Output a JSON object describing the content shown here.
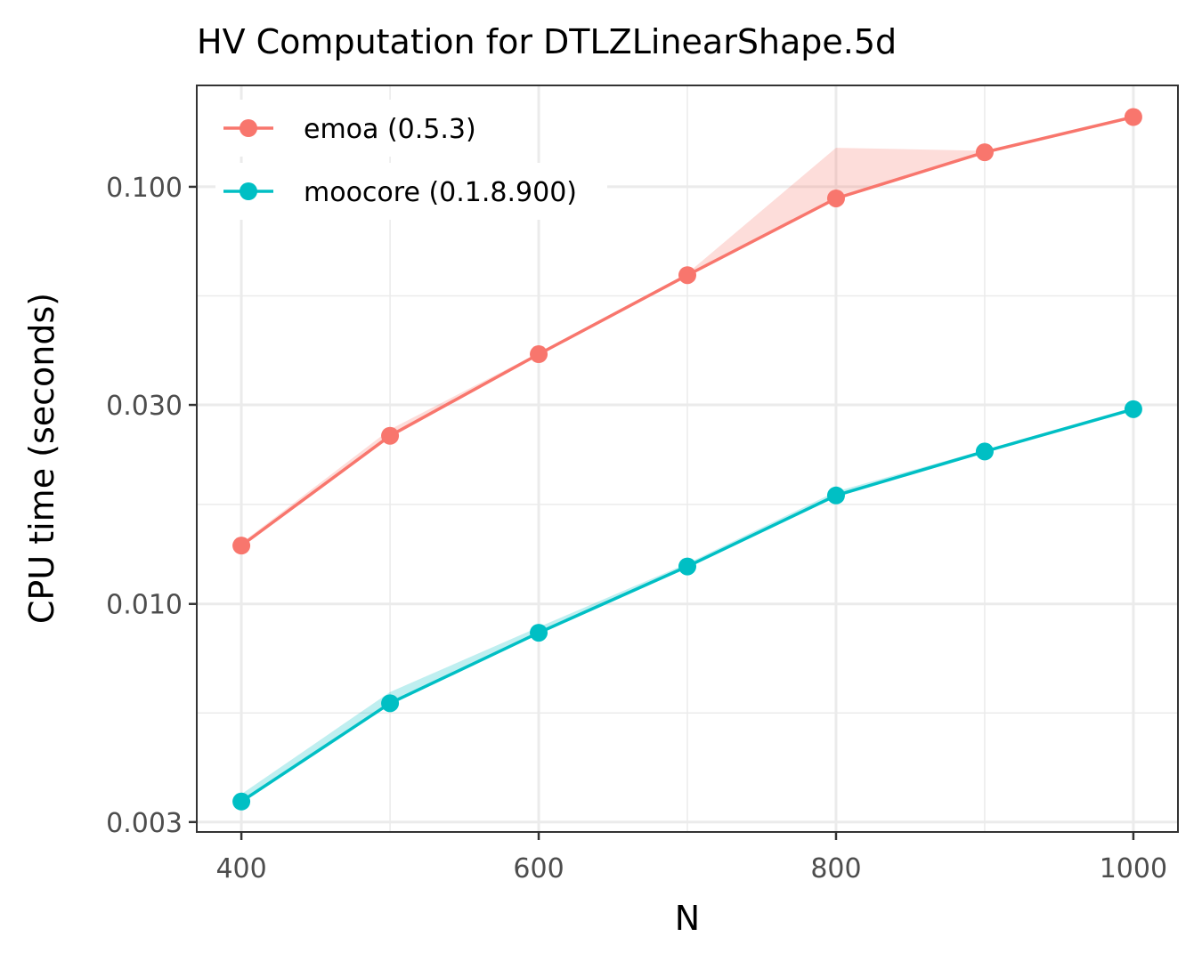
{
  "chart_data": {
    "type": "line",
    "title": "HV Computation for DTLZLinearShape.5d",
    "xlabel": "N",
    "ylabel": "CPU time (seconds)",
    "x": [
      400,
      500,
      600,
      700,
      800,
      900,
      1000
    ],
    "xlim": [
      370,
      1030
    ],
    "ylim": [
      0.00284,
      0.175
    ],
    "yscale": "log10",
    "x_ticks": [
      400,
      600,
      800,
      1000
    ],
    "x_tick_labels": [
      "400",
      "600",
      "800",
      "1000"
    ],
    "y_ticks": [
      0.003,
      0.01,
      0.03,
      0.1
    ],
    "y_tick_labels": [
      "0.003",
      "0.010",
      "0.030",
      "0.100"
    ],
    "grid": true,
    "legend_position": "top-left",
    "series": [
      {
        "name": "emoa (0.5.3)",
        "color": "#F8766D",
        "values": [
          0.0138,
          0.0253,
          0.0397,
          0.0614,
          0.0938,
          0.121,
          0.147
        ],
        "ribbon_lower": [
          0.0138,
          0.025,
          0.0395,
          0.0612,
          0.0935,
          0.12,
          0.146
        ],
        "ribbon_upper": [
          0.014,
          0.0262,
          0.04,
          0.062,
          0.124,
          0.122,
          0.148
        ]
      },
      {
        "name": "moocore (0.1.8.900)",
        "color": "#00BFC4",
        "values": [
          0.00336,
          0.00578,
          0.00853,
          0.0123,
          0.0182,
          0.0232,
          0.0293
        ],
        "ribbon_lower": [
          0.00334,
          0.00575,
          0.0085,
          0.0122,
          0.0181,
          0.0231,
          0.0292
        ],
        "ribbon_upper": [
          0.0035,
          0.00615,
          0.0088,
          0.0125,
          0.0186,
          0.0234,
          0.0296
        ]
      }
    ]
  }
}
